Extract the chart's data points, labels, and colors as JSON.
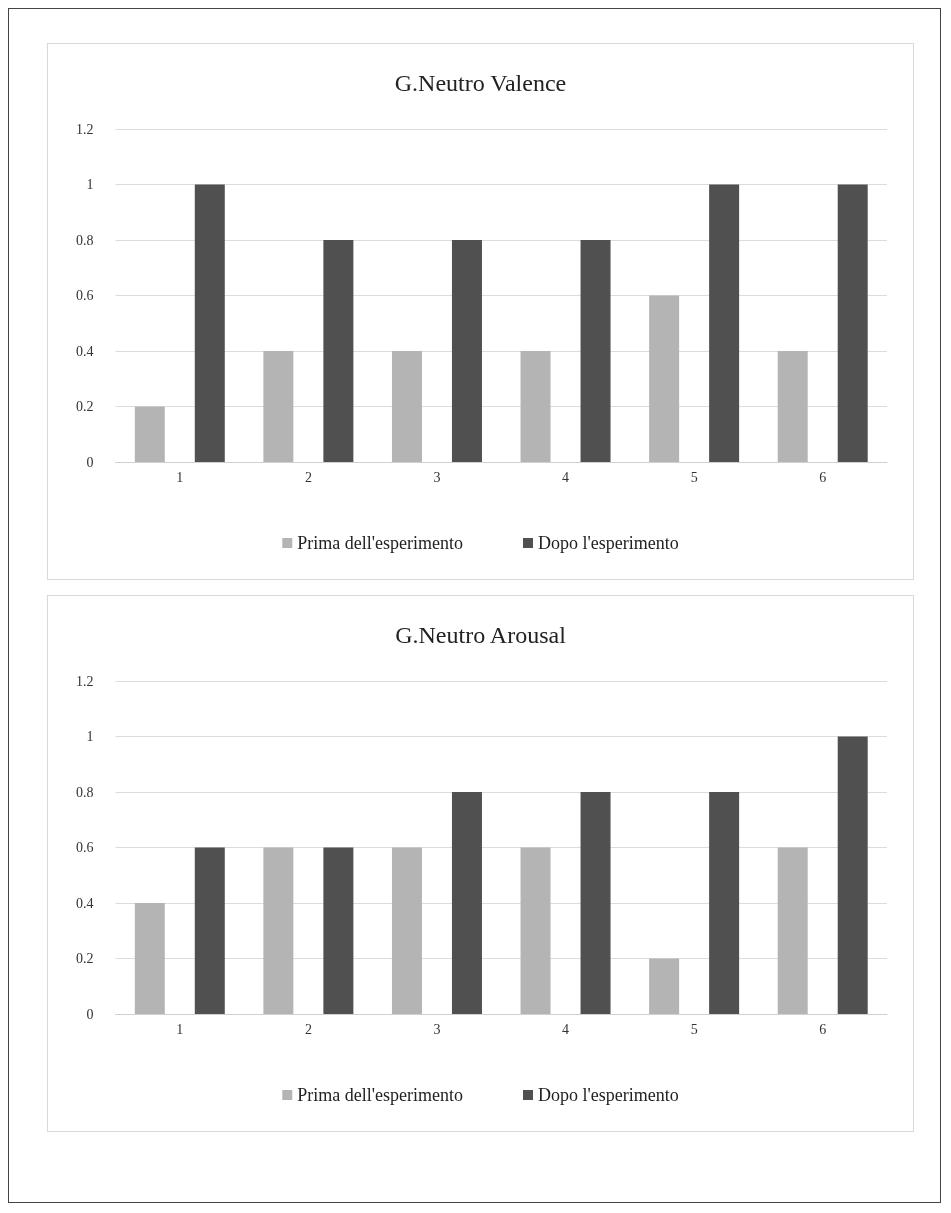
{
  "chart_data": [
    {
      "type": "bar",
      "title": "G.Neutro Valence",
      "categories": [
        "1",
        "2",
        "3",
        "4",
        "5",
        "6"
      ],
      "series": [
        {
          "name": "Prima dell'esperimento",
          "color": "#b4b4b4",
          "values": [
            0.2,
            0.4,
            0.4,
            0.4,
            0.6,
            0.4
          ]
        },
        {
          "name": "Dopo l'esperimento",
          "color": "#505050",
          "values": [
            1,
            0.8,
            0.8,
            0.8,
            1,
            1
          ]
        }
      ],
      "ylim": [
        0,
        1.2
      ],
      "yticks": [
        0,
        0.2,
        0.4,
        0.6,
        0.8,
        1,
        1.2
      ],
      "grid": "y",
      "legend": "bottom"
    },
    {
      "type": "bar",
      "title": "G.Neutro Arousal",
      "categories": [
        "1",
        "2",
        "3",
        "4",
        "5",
        "6"
      ],
      "series": [
        {
          "name": "Prima dell'esperimento",
          "color": "#b4b4b4",
          "values": [
            0.4,
            0.6,
            0.6,
            0.6,
            0.2,
            0.6
          ]
        },
        {
          "name": "Dopo l'esperimento",
          "color": "#505050",
          "values": [
            0.6,
            0.6,
            0.8,
            0.8,
            0.8,
            1
          ]
        }
      ],
      "ylim": [
        0,
        1.2
      ],
      "yticks": [
        0,
        0.2,
        0.4,
        0.6,
        0.8,
        1,
        1.2
      ],
      "grid": "y",
      "legend": "bottom"
    }
  ]
}
